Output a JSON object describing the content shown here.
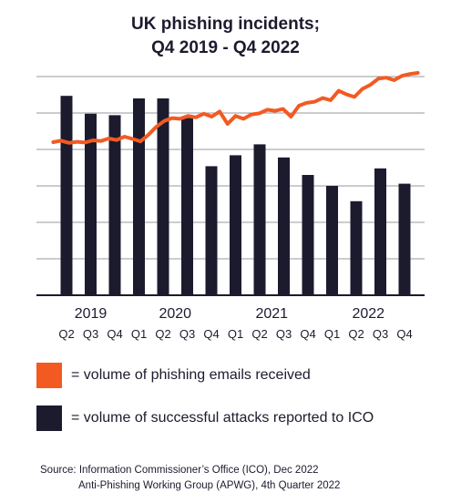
{
  "title_line1": "UK phishing incidents;",
  "title_line2": "Q4 2019 - Q4 2022",
  "colors": {
    "phishing": "#f25a22",
    "attacks": "#1c1b2e",
    "grid": "#9a9aa0",
    "axis": "#1c1b2e"
  },
  "legend": [
    {
      "label": "= volume of phishing emails received",
      "color": "#f25a22"
    },
    {
      "label": "= volume of successful attacks reported to ICO",
      "color": "#1c1b2e"
    }
  ],
  "source_line1": "Source: Information Commissioner’s Office (ICO), Dec 2022",
  "source_line2": "Anti-Phishing Working Group (APWG), 4th Quarter 2022",
  "chart_data": {
    "type": "bar",
    "title": "UK phishing incidents; Q4 2019 - Q4 2022",
    "categories": [
      "Q2",
      "Q3",
      "Q4",
      "Q1",
      "Q2",
      "Q3",
      "Q4",
      "Q1",
      "Q2",
      "Q3",
      "Q4",
      "Q1",
      "Q2",
      "Q3",
      "Q4"
    ],
    "year_labels": [
      {
        "label": "2019",
        "start": 0,
        "end": 2
      },
      {
        "label": "2020",
        "start": 3,
        "end": 6
      },
      {
        "label": "2021",
        "start": 7,
        "end": 10
      },
      {
        "label": "2022",
        "start": 11,
        "end": 14
      }
    ],
    "ylim": [
      0,
      6.2
    ],
    "grid_values": [
      1,
      2,
      3,
      4,
      5,
      6
    ],
    "grid": true,
    "legend_position": "bottom",
    "bars": [
      5.47,
      4.98,
      4.94,
      5.4,
      5.4,
      4.86,
      3.54,
      3.84,
      4.14,
      3.78,
      3.3,
      3.0,
      2.58,
      3.48,
      3.06
    ],
    "line": {
      "x_start": -0.55,
      "x_end": 14.55,
      "values": [
        4.2,
        4.24,
        4.18,
        4.21,
        4.19,
        4.25,
        4.23,
        4.3,
        4.26,
        4.35,
        4.29,
        4.22,
        4.4,
        4.62,
        4.78,
        4.86,
        4.84,
        4.92,
        4.88,
        4.98,
        4.9,
        5.04,
        4.7,
        4.92,
        4.84,
        4.96,
        4.99,
        5.09,
        5.06,
        5.11,
        4.9,
        5.2,
        5.28,
        5.31,
        5.41,
        5.35,
        5.61,
        5.51,
        5.44,
        5.66,
        5.77,
        5.94,
        5.97,
        5.9,
        6.02,
        6.07,
        6.1
      ]
    }
  }
}
